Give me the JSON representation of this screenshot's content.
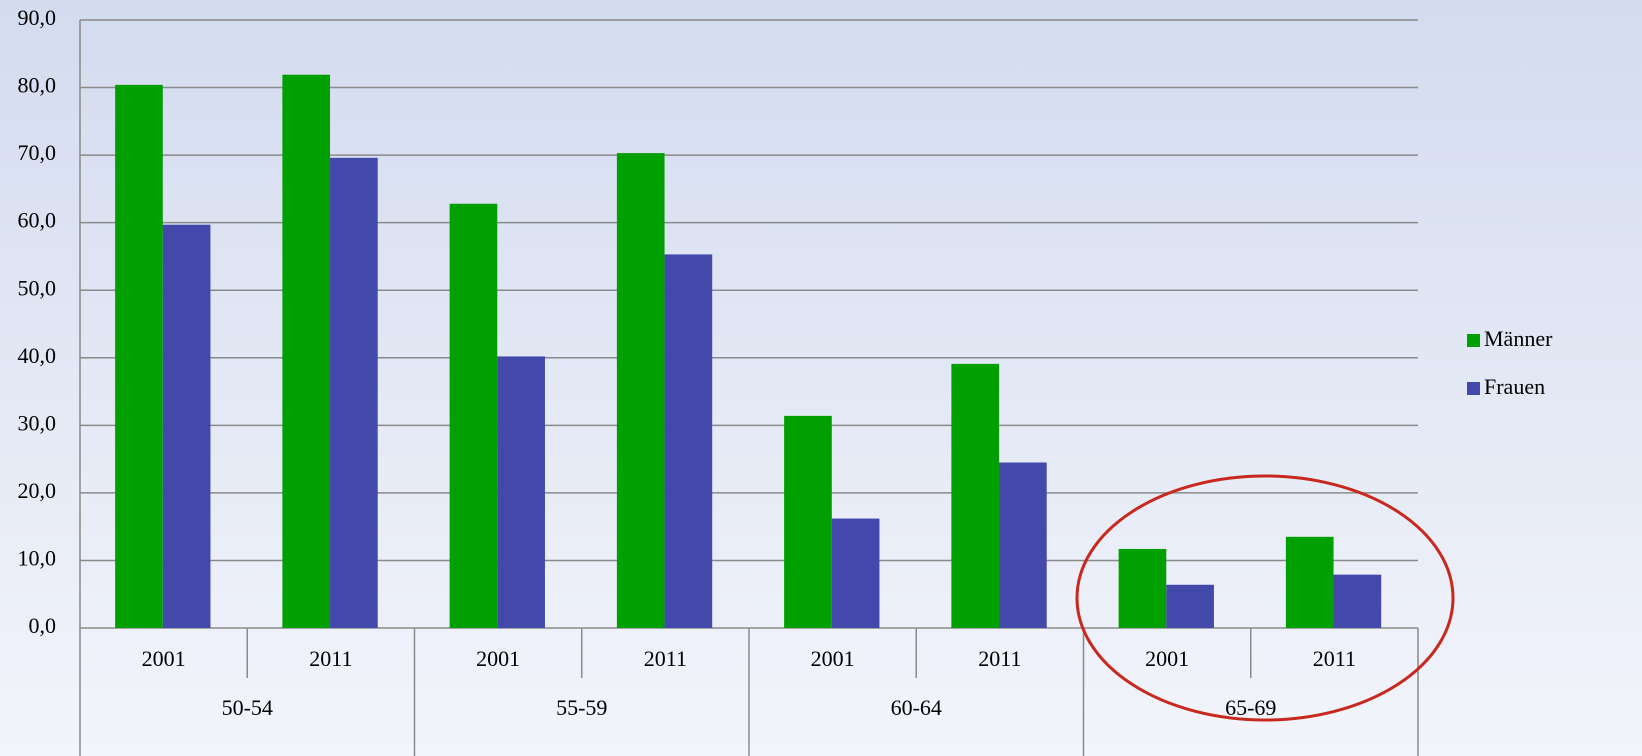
{
  "chart_data": {
    "type": "bar",
    "categories": [
      "2001",
      "2011",
      "2001",
      "2011",
      "2001",
      "2011",
      "2001",
      "2011"
    ],
    "groups": [
      "50-54",
      "55-59",
      "60-64",
      "65-69"
    ],
    "series": [
      {
        "name": "Männer",
        "color": "#00a000",
        "values": [
          80.4,
          81.9,
          62.8,
          70.3,
          31.4,
          39.1,
          11.7,
          13.5
        ]
      },
      {
        "name": "Frauen",
        "color": "#4349ab",
        "values": [
          59.7,
          69.6,
          40.2,
          55.3,
          16.2,
          24.5,
          6.4,
          7.9
        ]
      }
    ],
    "ylim": [
      0,
      90
    ],
    "yticks": [
      {
        "value": 0,
        "label": "0,0"
      },
      {
        "value": 10,
        "label": "10,0"
      },
      {
        "value": 20,
        "label": "20,0"
      },
      {
        "value": 30,
        "label": "30,0"
      },
      {
        "value": 40,
        "label": "40,0"
      },
      {
        "value": 50,
        "label": "50,0"
      },
      {
        "value": 60,
        "label": "60,0"
      },
      {
        "value": 70,
        "label": "70,0"
      },
      {
        "value": 80,
        "label": "80,0"
      },
      {
        "value": 90,
        "label": "90,0"
      }
    ],
    "grid": true,
    "legend": "right"
  }
}
